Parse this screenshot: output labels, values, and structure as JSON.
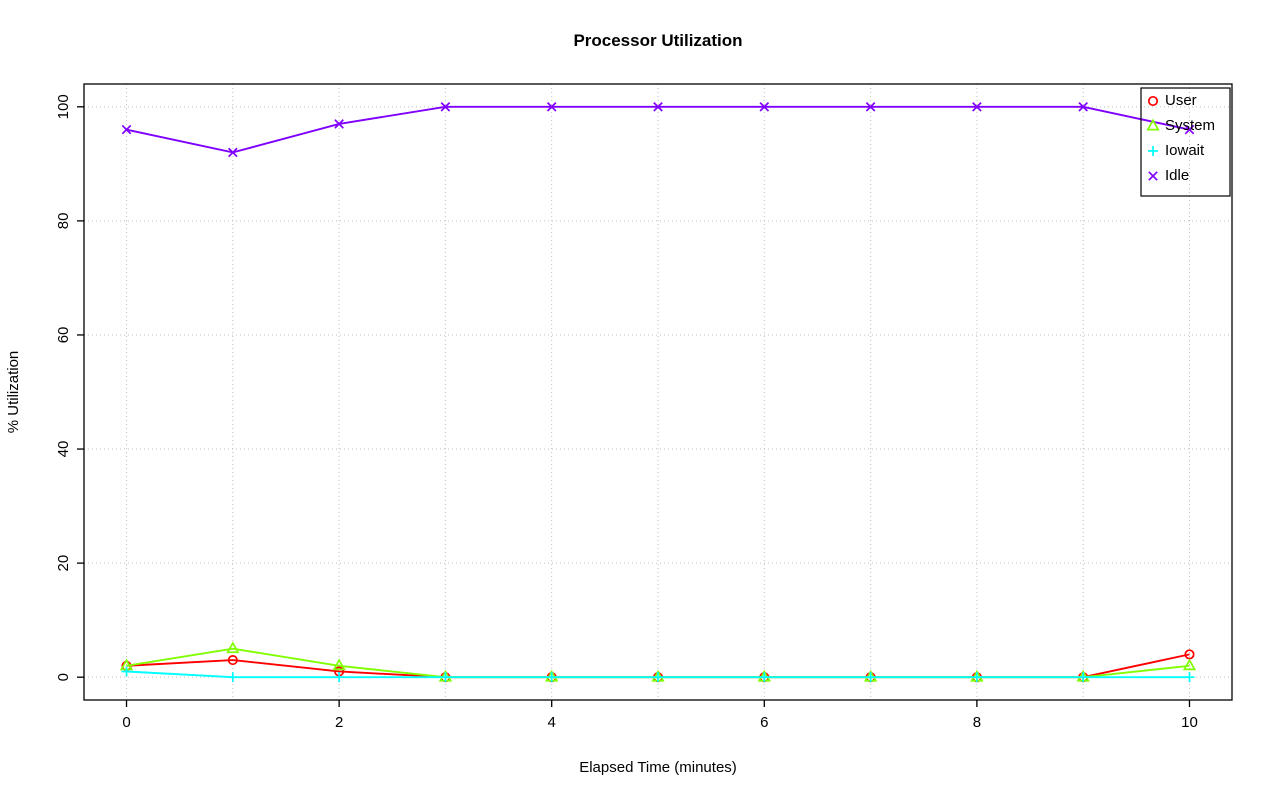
{
  "chart_data": {
    "type": "line",
    "title": "Processor Utilization",
    "xlabel": "Elapsed Time (minutes)",
    "ylabel": "% Utilization",
    "x": [
      0,
      1,
      2,
      3,
      4,
      5,
      6,
      7,
      8,
      9,
      10
    ],
    "xlim": [
      0,
      10
    ],
    "ylim": [
      0,
      100
    ],
    "x_ticks": [
      0,
      2,
      4,
      6,
      8,
      10
    ],
    "y_ticks": [
      0,
      20,
      40,
      60,
      80,
      100
    ],
    "grid_x": [
      0,
      1,
      2,
      3,
      4,
      5,
      6,
      7,
      8,
      9,
      10
    ],
    "grid_y": [
      0,
      20,
      40,
      60,
      80,
      100
    ],
    "grid": true,
    "legend_position": "top-right",
    "colors": {
      "axis": "#000000",
      "grid": "#BEBEBE",
      "text": "#000000"
    },
    "series": [
      {
        "name": "User",
        "color": "#FF0000",
        "marker": "circle",
        "values": [
          2,
          3,
          1,
          0,
          0,
          0,
          0,
          0,
          0,
          0,
          4
        ]
      },
      {
        "name": "System",
        "color": "#80FF00",
        "marker": "triangle",
        "values": [
          2,
          5,
          2,
          0,
          0,
          0,
          0,
          0,
          0,
          0,
          2
        ]
      },
      {
        "name": "Iowait",
        "color": "#00FFFF",
        "marker": "plus",
        "values": [
          1,
          0,
          0,
          0,
          0,
          0,
          0,
          0,
          0,
          0,
          0
        ]
      },
      {
        "name": "Idle",
        "color": "#8000FF",
        "marker": "x",
        "values": [
          96,
          92,
          97,
          100,
          100,
          100,
          100,
          100,
          100,
          100,
          96
        ]
      }
    ]
  }
}
